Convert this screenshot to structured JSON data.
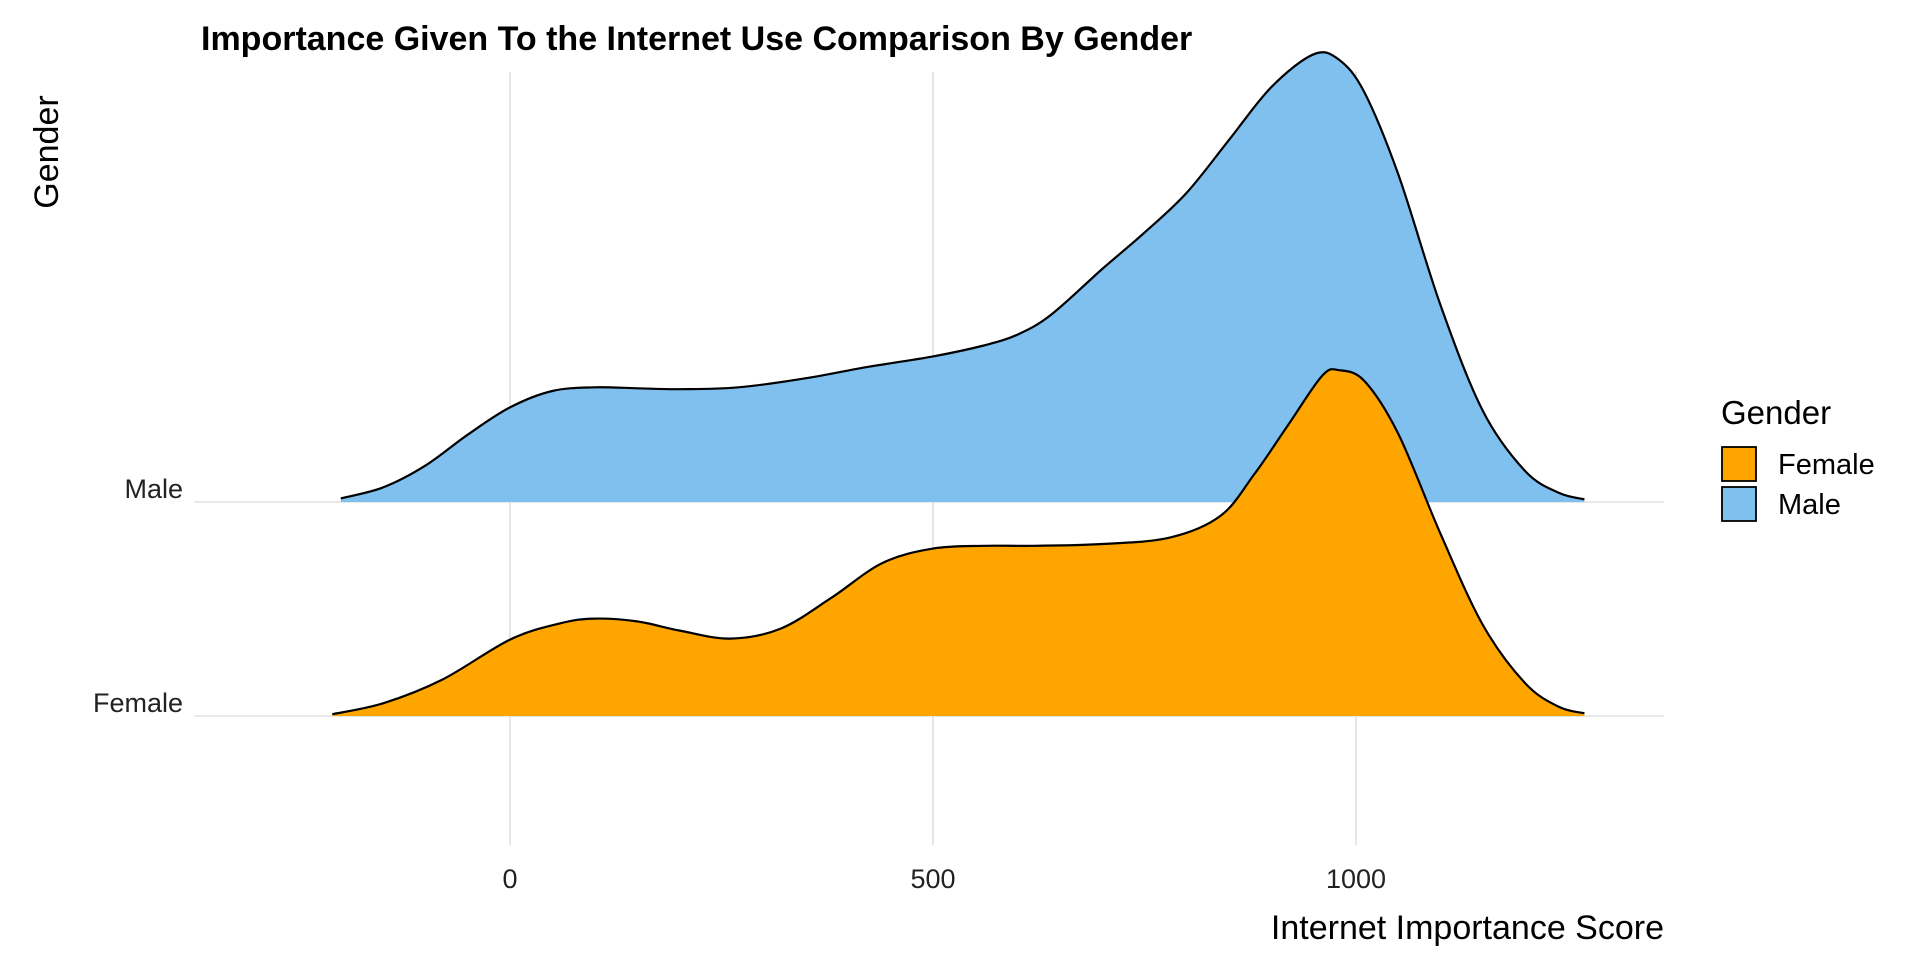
{
  "chart_data": {
    "type": "ridgeline",
    "title": "Importance Given To the Internet Use Comparison By Gender",
    "xlabel": "Internet Importance Score",
    "ylabel": "Gender",
    "xlim": [
      -370,
      1370
    ],
    "x_ticks": [
      0,
      500,
      1000
    ],
    "x_tick_labels": [
      "0",
      "500",
      "1000"
    ],
    "categories": [
      "Female",
      "Male"
    ],
    "grid": "vertical major",
    "legend": {
      "title": "Gender",
      "position": "right",
      "entries": [
        "Female",
        "Male"
      ]
    },
    "series": [
      {
        "name": "Female",
        "color": "#FFA500",
        "x": [
          -210,
          -150,
          -80,
          0,
          60,
          100,
          150,
          200,
          260,
          320,
          380,
          440,
          500,
          560,
          620,
          700,
          780,
          840,
          880,
          920,
          960,
          980,
          1010,
          1050,
          1100,
          1150,
          1200,
          1240,
          1270
        ],
        "density": [
          0.01,
          0.07,
          0.2,
          0.42,
          0.51,
          0.535,
          0.52,
          0.47,
          0.425,
          0.48,
          0.65,
          0.84,
          0.92,
          0.935,
          0.935,
          0.945,
          0.98,
          1.1,
          1.33,
          1.6,
          1.87,
          1.9,
          1.84,
          1.55,
          1.0,
          0.5,
          0.18,
          0.05,
          0.015
        ]
      },
      {
        "name": "Male",
        "color": "#7FC0EE",
        "x": [
          -200,
          -150,
          -100,
          -50,
          0,
          50,
          100,
          150,
          200,
          270,
          350,
          420,
          500,
          560,
          600,
          640,
          700,
          750,
          800,
          850,
          900,
          950,
          980,
          1010,
          1050,
          1100,
          1150,
          1200,
          1240,
          1270
        ],
        "density": [
          0.02,
          0.08,
          0.2,
          0.37,
          0.52,
          0.61,
          0.63,
          0.625,
          0.62,
          0.63,
          0.68,
          0.74,
          0.8,
          0.86,
          0.92,
          1.03,
          1.28,
          1.48,
          1.7,
          1.99,
          2.28,
          2.46,
          2.43,
          2.25,
          1.8,
          1.08,
          0.5,
          0.17,
          0.05,
          0.015
        ]
      }
    ]
  }
}
